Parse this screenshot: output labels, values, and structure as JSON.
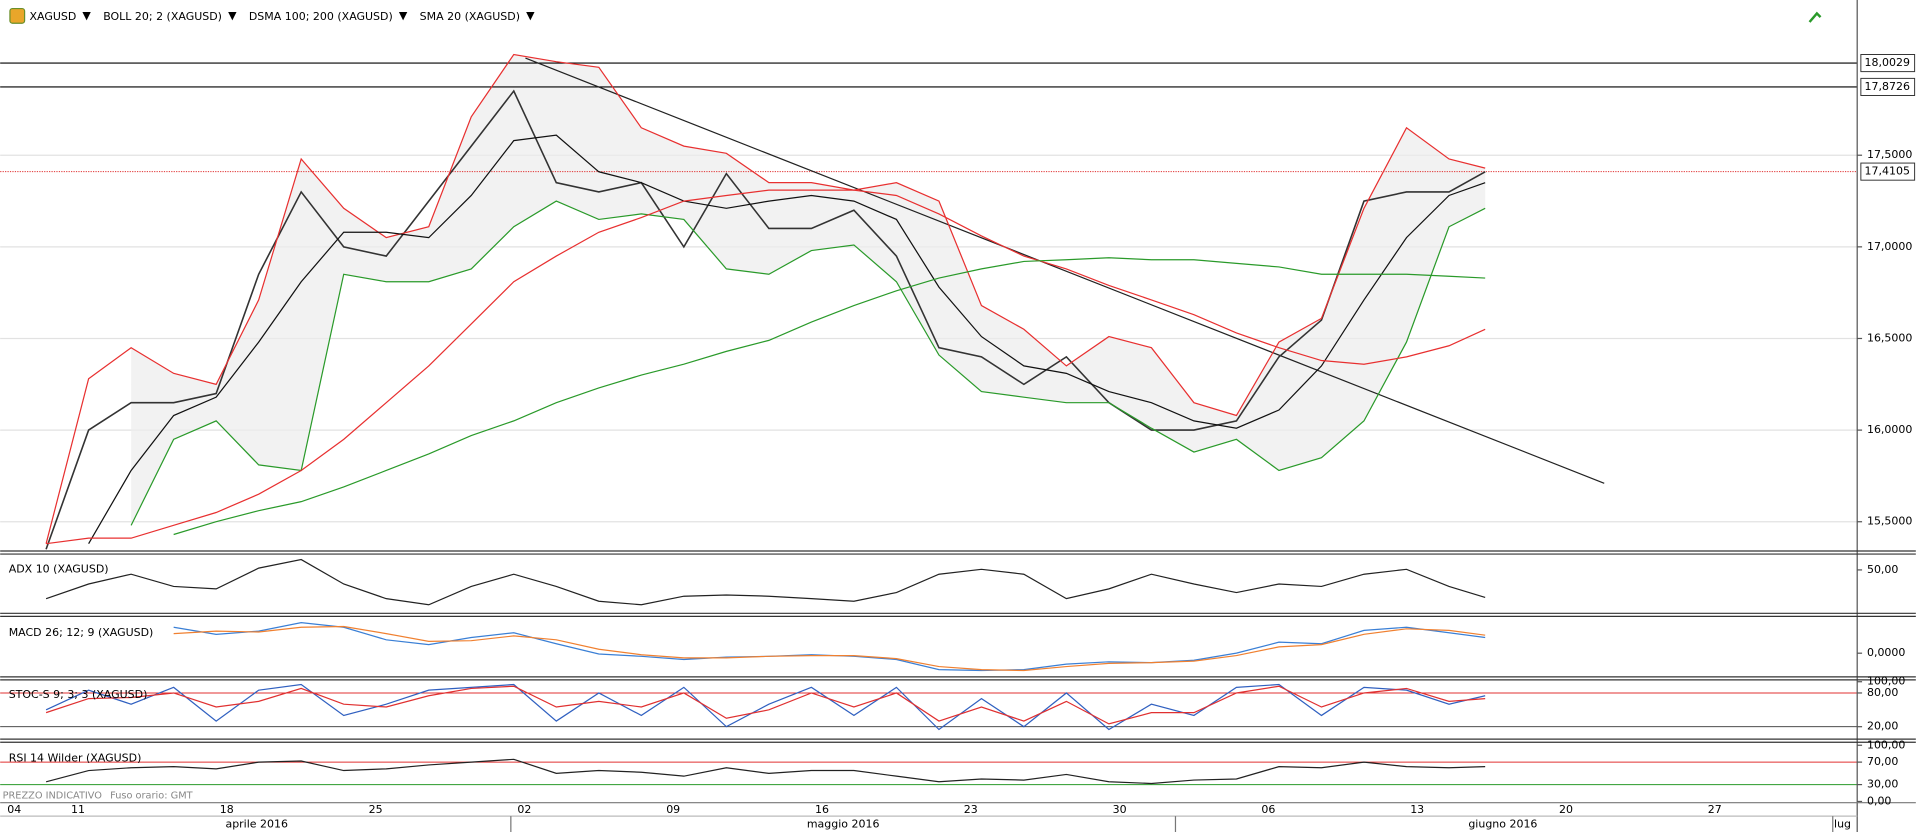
{
  "chart_data": [
    {
      "type": "line",
      "legend": [
        "XAGUSD",
        "BOLL 20; 2 (XAGUSD)",
        "DSMA 100; 200 (XAGUSD)",
        "SMA 20 (XAGUSD)"
      ],
      "notes": [
        "PREZZO INDICATIVO",
        "Fuso orario: GMT"
      ],
      "x": [
        -1,
        1,
        3,
        5,
        7,
        9,
        11,
        13,
        15,
        17,
        19,
        21,
        23,
        25,
        27,
        29,
        31,
        33,
        35,
        37,
        39,
        41,
        43,
        45,
        47,
        49,
        51,
        53,
        55,
        57,
        59,
        61,
        63,
        65,
        66.7
      ],
      "xlim": [
        -3.16,
        84.2
      ],
      "xticks": [
        {
          "value": -3,
          "label": "04"
        },
        {
          "value": 0,
          "label": "11"
        },
        {
          "value": 7,
          "label": "18"
        },
        {
          "value": 14,
          "label": "25"
        },
        {
          "value": 21,
          "label": "02"
        },
        {
          "value": 28,
          "label": "09"
        },
        {
          "value": 35,
          "label": "16"
        },
        {
          "value": 42,
          "label": "23"
        },
        {
          "value": 49,
          "label": "30"
        },
        {
          "value": 56,
          "label": "06"
        },
        {
          "value": 63,
          "label": "13"
        },
        {
          "value": 70,
          "label": "20"
        },
        {
          "value": 77,
          "label": "27"
        }
      ],
      "months": [
        "aprile 2016",
        "maggio 2016",
        "giugno 2016",
        "lug"
      ],
      "ylim": [
        15.347,
        18.347
      ],
      "yticks": [
        {
          "value": 17.5,
          "label": "17,5000"
        },
        {
          "value": 17.0,
          "label": "17,0000"
        },
        {
          "value": 16.5,
          "label": "16,5000"
        },
        {
          "value": 16.0,
          "label": "16,0000"
        },
        {
          "value": 15.5,
          "label": "15,5000"
        }
      ],
      "grid": true,
      "levels": [
        {
          "value": 18.0029,
          "label": "18,0029",
          "color": "#000000"
        },
        {
          "value": 17.8726,
          "label": "17,8726",
          "color": "#000000"
        },
        {
          "value": 17.4105,
          "label": "17,4105",
          "color": "#e03030",
          "dashed": true
        }
      ],
      "trendline": {
        "x": [
          21.55,
          72.3
        ],
        "y": [
          18.03,
          15.71
        ],
        "color": "#222222"
      },
      "band": [
        1,
        2
      ],
      "series": [
        {
          "color": "#333333",
          "values": [
            15.35,
            16.0,
            16.15,
            16.15,
            16.2,
            16.85,
            17.3,
            17.0,
            16.95,
            17.25,
            17.55,
            17.85,
            17.35,
            17.3,
            17.35,
            17.0,
            17.4,
            17.1,
            17.1,
            17.2,
            16.95,
            16.45,
            16.4,
            16.25,
            16.4,
            16.15,
            16.0,
            16.0,
            16.05,
            16.4,
            16.6,
            17.25,
            17.3,
            17.3,
            17.41
          ]
        },
        {
          "color": "#e83030",
          "values": [
            15.38,
            16.28,
            16.45,
            16.31,
            16.25,
            16.71,
            17.48,
            17.21,
            17.05,
            17.11,
            17.71,
            18.05,
            18.01,
            17.98,
            17.65,
            17.55,
            17.51,
            17.35,
            17.35,
            17.31,
            17.35,
            17.25,
            16.68,
            16.55,
            16.35,
            16.51,
            16.45,
            16.15,
            16.08,
            16.48,
            16.61,
            17.21,
            17.65,
            17.48,
            17.43
          ]
        },
        {
          "color": "#2a9a2a",
          "values": [
            null,
            null,
            15.48,
            15.95,
            16.05,
            15.81,
            15.78,
            16.85,
            16.81,
            16.81,
            16.88,
            17.11,
            17.25,
            17.15,
            17.18,
            17.15,
            16.88,
            16.85,
            16.98,
            17.01,
            16.81,
            16.41,
            16.21,
            16.18,
            16.15,
            16.15,
            16.01,
            15.88,
            15.95,
            15.78,
            15.85,
            16.05,
            16.48,
            17.11,
            17.21
          ]
        },
        {
          "color": "#111111",
          "values": [
            null,
            15.38,
            15.78,
            16.08,
            16.18,
            16.48,
            16.81,
            17.08,
            17.08,
            17.05,
            17.28,
            17.58,
            17.61,
            17.41,
            17.35,
            17.25,
            17.21,
            17.25,
            17.28,
            17.25,
            17.15,
            16.78,
            16.51,
            16.35,
            16.31,
            16.21,
            16.15,
            16.05,
            16.01,
            16.11,
            16.35,
            16.71,
            17.05,
            17.28,
            17.35
          ]
        },
        {
          "color": "#e83030",
          "values": [
            15.38,
            15.41,
            15.41,
            15.48,
            15.55,
            15.65,
            15.78,
            15.95,
            16.15,
            16.35,
            16.58,
            16.81,
            16.95,
            17.08,
            17.16,
            17.25,
            17.28,
            17.31,
            17.31,
            17.31,
            17.28,
            17.18,
            17.06,
            16.95,
            16.88,
            16.79,
            16.71,
            16.63,
            16.53,
            16.45,
            16.38,
            16.36,
            16.4,
            16.46,
            16.55
          ]
        },
        {
          "color": "#2a9a2a",
          "values": [
            null,
            null,
            null,
            15.43,
            15.5,
            15.56,
            15.61,
            15.69,
            15.78,
            15.87,
            15.97,
            16.05,
            16.15,
            16.23,
            16.3,
            16.36,
            16.43,
            16.49,
            16.59,
            16.68,
            16.76,
            16.83,
            16.88,
            16.92,
            16.93,
            16.94,
            16.93,
            16.93,
            16.91,
            16.89,
            16.85,
            16.85,
            16.85,
            16.84,
            16.83
          ]
        }
      ]
    },
    {
      "type": "line",
      "legend": [
        "ADX 10 (XAGUSD)"
      ],
      "ylim": [
        15,
        62
      ],
      "yticks": [
        {
          "value": 50,
          "label": "50,00"
        }
      ],
      "series": [
        {
          "color": "#222222",
          "values": [
            25.4,
            38,
            46.3,
            35.9,
            33.8,
            51.6,
            58.9,
            38,
            25.4,
            20.2,
            35.9,
            46.3,
            35.9,
            23.3,
            20.2,
            27.5,
            28.6,
            27.5,
            25.4,
            23.3,
            30.7,
            46.3,
            50.5,
            46.3,
            25.4,
            33.8,
            46.3,
            38,
            30.7,
            38,
            35.9,
            46.3,
            50.5,
            35.9,
            26.5
          ]
        }
      ]
    },
    {
      "type": "line",
      "legend": [
        "MACD 26; 12; 9 (XAGUSD)"
      ],
      "ylim": [
        -0.27,
        0.43
      ],
      "yticks": [
        {
          "value": 0,
          "label": "0,0000"
        }
      ],
      "series": [
        {
          "color": "#3a7fd5",
          "values": [
            null,
            null,
            null,
            0.33,
            0.24,
            0.28,
            0.39,
            0.33,
            0.17,
            0.11,
            0.2,
            0.26,
            0.12,
            -0.01,
            -0.04,
            -0.08,
            -0.05,
            -0.04,
            -0.02,
            -0.04,
            -0.08,
            -0.21,
            -0.22,
            -0.21,
            -0.14,
            -0.11,
            -0.12,
            -0.09,
            0,
            0.14,
            0.12,
            0.29,
            0.33,
            0.26,
            0.2
          ]
        },
        {
          "color": "#f08030",
          "values": [
            null,
            null,
            null,
            0.25,
            0.28,
            0.27,
            0.33,
            0.34,
            0.25,
            0.15,
            0.16,
            0.22,
            0.17,
            0.05,
            -0.02,
            -0.06,
            -0.06,
            -0.04,
            -0.03,
            -0.03,
            -0.07,
            -0.17,
            -0.21,
            -0.22,
            -0.17,
            -0.13,
            -0.12,
            -0.1,
            -0.03,
            0.08,
            0.11,
            0.24,
            0.31,
            0.29,
            0.23
          ]
        }
      ]
    },
    {
      "type": "line",
      "legend": [
        "STOC-S 9; 3; 3 (XAGUSD)"
      ],
      "ylim": [
        0,
        100
      ],
      "yticks": [
        {
          "value": 100,
          "label": "100,00"
        },
        {
          "value": 80,
          "label": "80,00",
          "color": "#e03030"
        },
        {
          "value": 20,
          "label": "20,00",
          "color": "#333333"
        }
      ],
      "series": [
        {
          "color": "#3060c0",
          "values": [
            50,
            85,
            60,
            90,
            30,
            85,
            95,
            40,
            60,
            85,
            90,
            95,
            30,
            80,
            40,
            90,
            20,
            60,
            90,
            40,
            90,
            15,
            70,
            20,
            80,
            15,
            60,
            40,
            90,
            95,
            40,
            90,
            85,
            60,
            75
          ]
        },
        {
          "color": "#e03030",
          "values": [
            45,
            70,
            72,
            80,
            55,
            65,
            88,
            60,
            55,
            75,
            88,
            92,
            55,
            65,
            55,
            80,
            35,
            50,
            80,
            55,
            80,
            30,
            55,
            30,
            65,
            25,
            45,
            45,
            80,
            92,
            55,
            80,
            88,
            65,
            70
          ]
        }
      ]
    },
    {
      "type": "line",
      "legend": [
        "RSI 14 Wilder (XAGUSD)"
      ],
      "ylim": [
        0,
        100
      ],
      "yticks": [
        {
          "value": 100,
          "label": "100,00"
        },
        {
          "value": 70,
          "label": "70,00",
          "color": "#e03030"
        },
        {
          "value": 30,
          "label": "30,00",
          "color": "#2a9a2a"
        },
        {
          "value": 0,
          "label": "0,00"
        }
      ],
      "series": [
        {
          "color": "#222222",
          "values": [
            35,
            55,
            60,
            62,
            58,
            70,
            72,
            55,
            58,
            65,
            70,
            75,
            50,
            55,
            52,
            45,
            60,
            50,
            55,
            55,
            45,
            35,
            40,
            38,
            48,
            35,
            32,
            38,
            40,
            62,
            60,
            70,
            62,
            60,
            62
          ]
        }
      ]
    }
  ]
}
